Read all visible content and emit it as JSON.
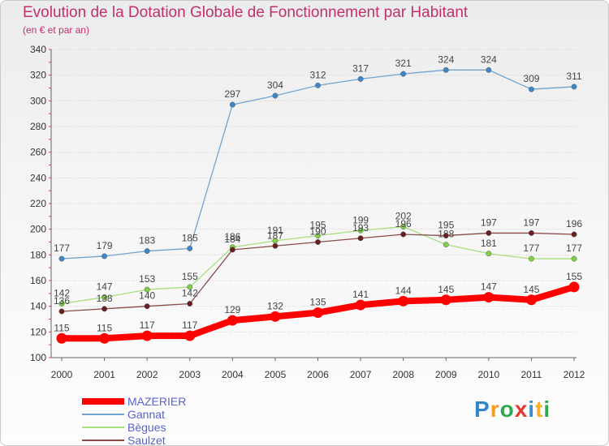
{
  "title": "Evolution de la Dotation Globale de Fonctionnement par Habitant",
  "subtitle": "(en € et par an)",
  "logo": {
    "text": "Proxiti",
    "colors": [
      "#2f87c8",
      "#f0a020",
      "#2fa84f",
      "#e23b2e",
      "#3a8fd0",
      "#f4b02a",
      "#2fa84f"
    ]
  },
  "chart_data": {
    "type": "line",
    "title": "Evolution de la Dotation Globale de Fonctionnement par Habitant",
    "ylabel": "(en € et par an)",
    "xlabel": "",
    "categories": [
      "2000",
      "2001",
      "2002",
      "2003",
      "2004",
      "2005",
      "2006",
      "2007",
      "2008",
      "2009",
      "2010",
      "2011",
      "2012"
    ],
    "ylim": [
      100,
      340
    ],
    "yticks": [
      100,
      120,
      140,
      160,
      180,
      200,
      220,
      240,
      260,
      280,
      300,
      320,
      340
    ],
    "grid": "horizontal",
    "legend_position": "bottom-left",
    "series": [
      {
        "name": "Gannat",
        "color": "#6fa4d2",
        "marker": "#3d86c8",
        "values": [
          177,
          179,
          183,
          185,
          297,
          304,
          312,
          317,
          321,
          324,
          324,
          309,
          311
        ]
      },
      {
        "name": "Bègues",
        "color": "#a6df7c",
        "marker": "#7fd043",
        "values": [
          142,
          147,
          153,
          155,
          186,
          191,
          195,
          199,
          202,
          188,
          181,
          177,
          177
        ]
      },
      {
        "name": "Saulzet",
        "color": "#8a4a4a",
        "marker": "#6b1e1e",
        "values": [
          136,
          138,
          140,
          142,
          184,
          187,
          190,
          193,
          196,
          195,
          197,
          197,
          196
        ]
      },
      {
        "name": "MAZERIER",
        "color": "#ff0000",
        "marker": "#ff0000",
        "thick": true,
        "values": [
          115,
          115,
          117,
          117,
          129,
          132,
          135,
          141,
          144,
          145,
          147,
          145,
          155
        ]
      }
    ]
  },
  "legend": [
    {
      "name": "MAZERIER",
      "color": "#ff0000",
      "thick": true
    },
    {
      "name": "Gannat",
      "color": "#6fa4d2"
    },
    {
      "name": "Bègues",
      "color": "#a6df7c"
    },
    {
      "name": "Saulzet",
      "color": "#8a4a4a"
    }
  ]
}
